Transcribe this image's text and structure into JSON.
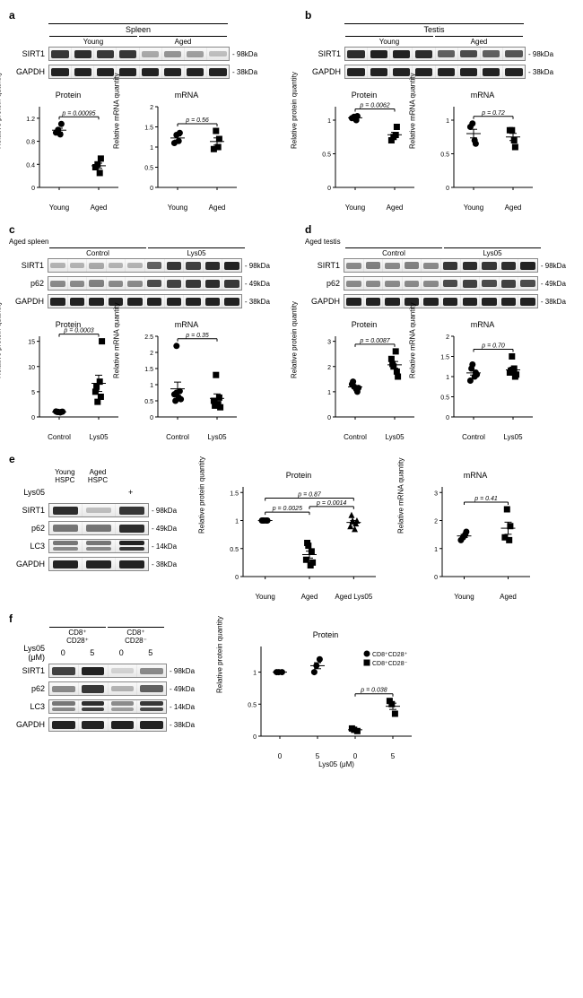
{
  "panels": {
    "a": {
      "label": "a",
      "tissue": "Spleen",
      "groups": [
        "Young",
        "Aged"
      ],
      "lanes": 4,
      "blots": [
        {
          "name": "SIRT1",
          "mw": "- 98kDa",
          "intensities": [
            0.9,
            0.95,
            0.9,
            0.9,
            0.35,
            0.45,
            0.4,
            0.25
          ]
        },
        {
          "name": "GAPDH",
          "mw": "- 38kDa",
          "intensities": [
            1,
            1,
            1,
            1,
            1,
            1,
            1,
            1
          ]
        }
      ],
      "protein": {
        "title": "Protein",
        "ylabel": "Relative protein quantity",
        "ylim": [
          0,
          1.4
        ],
        "yticks": [
          0,
          0.4,
          0.8,
          1.2
        ],
        "cats": [
          "Young",
          "Aged"
        ],
        "p": "p = 0.00095",
        "series": [
          {
            "shape": "circle",
            "x": 0,
            "vals": [
              1.0,
              1.1,
              0.95,
              0.92
            ]
          },
          {
            "shape": "square",
            "x": 1,
            "vals": [
              0.4,
              0.5,
              0.35,
              0.25
            ]
          }
        ]
      },
      "mrna": {
        "title": "mRNA",
        "ylabel": "Relative mRNA quantity",
        "ylim": [
          0,
          2.0
        ],
        "yticks": [
          0,
          0.5,
          1.0,
          1.5,
          2.0
        ],
        "cats": [
          "Young",
          "Aged"
        ],
        "p": "p = 0.56",
        "series": [
          {
            "shape": "circle",
            "x": 0,
            "vals": [
              1.3,
              1.35,
              1.1,
              1.15
            ]
          },
          {
            "shape": "square",
            "x": 1,
            "vals": [
              1.4,
              1.2,
              0.95,
              1.0
            ]
          }
        ]
      }
    },
    "b": {
      "label": "b",
      "tissue": "Testis",
      "groups": [
        "Young",
        "Aged"
      ],
      "lanes": 4,
      "blots": [
        {
          "name": "SIRT1",
          "mw": "- 98kDa",
          "intensities": [
            0.95,
            1.0,
            1.0,
            0.95,
            0.7,
            0.8,
            0.7,
            0.75
          ]
        },
        {
          "name": "GAPDH",
          "mw": "- 38kDa",
          "intensities": [
            1,
            1,
            1,
            1,
            1,
            1,
            1,
            1
          ]
        }
      ],
      "protein": {
        "title": "Protein",
        "ylabel": "Relative protein quantity",
        "ylim": [
          0,
          1.2
        ],
        "yticks": [
          0,
          0.5,
          1.0
        ],
        "cats": [
          "Young",
          "Aged"
        ],
        "p": "p = 0.0062",
        "series": [
          {
            "shape": "circle",
            "x": 0,
            "vals": [
              1.05,
              1.06,
              1.03,
              1.0
            ]
          },
          {
            "shape": "square",
            "x": 1,
            "vals": [
              0.75,
              0.9,
              0.7,
              0.78
            ]
          }
        ]
      },
      "mrna": {
        "title": "mRNA",
        "ylabel": "Relative mRNA quantity",
        "ylim": [
          0,
          1.2
        ],
        "yticks": [
          0,
          0.5,
          1.0
        ],
        "cats": [
          "Young",
          "Aged"
        ],
        "p": "p = 0.72",
        "series": [
          {
            "shape": "circle",
            "x": 0,
            "vals": [
              0.95,
              0.65,
              0.9,
              0.7
            ]
          },
          {
            "shape": "square",
            "x": 1,
            "vals": [
              0.85,
              0.6,
              0.85,
              0.7
            ]
          }
        ]
      }
    },
    "c": {
      "label": "c",
      "tissue_label": "Aged spleen",
      "groups": [
        "Control",
        "Lys05"
      ],
      "lanes": 5,
      "blots": [
        {
          "name": "SIRT1",
          "mw": "- 98kDa",
          "intensities": [
            0.3,
            0.3,
            0.35,
            0.3,
            0.3,
            0.7,
            0.9,
            0.85,
            0.95,
            1.0
          ]
        },
        {
          "name": "p62",
          "mw": "- 49kDa",
          "intensities": [
            0.5,
            0.5,
            0.55,
            0.5,
            0.5,
            0.8,
            0.85,
            0.9,
            0.95,
            0.9
          ]
        },
        {
          "name": "GAPDH",
          "mw": "- 38kDa",
          "intensities": [
            1,
            1,
            1,
            1,
            1,
            1,
            1,
            1,
            1,
            1
          ]
        }
      ],
      "protein": {
        "title": "Protein",
        "ylabel": "Relative protein quantity",
        "ylim": [
          0,
          16
        ],
        "yticks": [
          0,
          5,
          10,
          15
        ],
        "cats": [
          "Control",
          "Lys05"
        ],
        "p": "p = 0.0003",
        "series": [
          {
            "shape": "circle",
            "x": 0,
            "vals": [
              1,
              1,
              1.1,
              0.9,
              1,
              1.05,
              1
            ]
          },
          {
            "shape": "square",
            "x": 1,
            "vals": [
              3,
              4,
              5,
              7,
              6,
              15
            ]
          }
        ]
      },
      "mrna": {
        "title": "mRNA",
        "ylabel": "Relative mRNA quantity",
        "ylim": [
          0,
          2.5
        ],
        "yticks": [
          0,
          0.5,
          1.0,
          1.5,
          2.0,
          2.5
        ],
        "cats": [
          "Control",
          "Lys05"
        ],
        "p": "p = 0.35",
        "series": [
          {
            "shape": "circle",
            "x": 0,
            "vals": [
              2.2,
              0.8,
              0.7,
              0.6,
              0.5,
              0.55,
              0.75
            ]
          },
          {
            "shape": "square",
            "x": 1,
            "vals": [
              1.3,
              0.6,
              0.5,
              0.4,
              0.35,
              0.3
            ]
          }
        ]
      }
    },
    "d": {
      "label": "d",
      "tissue_label": "Aged testis",
      "groups": [
        "Control",
        "Lys05"
      ],
      "lanes": 5,
      "blots": [
        {
          "name": "SIRT1",
          "mw": "- 98kDa",
          "intensities": [
            0.5,
            0.55,
            0.5,
            0.55,
            0.5,
            0.9,
            0.95,
            0.9,
            0.95,
            1.0
          ]
        },
        {
          "name": "p62",
          "mw": "- 49kDa",
          "intensities": [
            0.5,
            0.5,
            0.5,
            0.5,
            0.5,
            0.8,
            0.85,
            0.8,
            0.85,
            0.8
          ]
        },
        {
          "name": "GAPDH",
          "mw": "- 38kDa",
          "intensities": [
            1,
            1,
            1,
            1,
            1,
            1,
            1,
            1,
            1,
            1
          ]
        }
      ],
      "protein": {
        "title": "Protein",
        "ylabel": "Relative protein quantity",
        "ylim": [
          0,
          3.2
        ],
        "yticks": [
          0,
          1,
          2,
          3
        ],
        "cats": [
          "Control",
          "Lys05"
        ],
        "p": "p = 0.0087",
        "series": [
          {
            "shape": "circle",
            "x": 0,
            "vals": [
              1.2,
              1.0,
              1.3,
              1.1,
              1.4,
              1.15
            ]
          },
          {
            "shape": "square",
            "x": 1,
            "vals": [
              2.0,
              1.8,
              2.3,
              2.6,
              2.1,
              1.6
            ]
          }
        ]
      },
      "mrna": {
        "title": "mRNA",
        "ylabel": "Relative mRNA quantity",
        "ylim": [
          0,
          2.0
        ],
        "yticks": [
          0,
          0.5,
          1.0,
          1.5,
          2.0
        ],
        "cats": [
          "Control",
          "Lys05"
        ],
        "p": "p = 0.70",
        "series": [
          {
            "shape": "circle",
            "x": 0,
            "vals": [
              1.3,
              1.1,
              0.9,
              1.0,
              1.2,
              1.05
            ]
          },
          {
            "shape": "square",
            "x": 1,
            "vals": [
              1.5,
              1.0,
              1.1,
              1.2,
              1.15,
              1.05
            ]
          }
        ]
      }
    },
    "e": {
      "label": "e",
      "col_labels": [
        "Young\nHSPC",
        "Aged\nHSPC",
        ""
      ],
      "lys_row": [
        "",
        "",
        "+"
      ],
      "blots": [
        {
          "name": "SIRT1",
          "mw": "- 98kDa",
          "intensities": [
            0.95,
            0.25,
            0.9
          ]
        },
        {
          "name": "p62",
          "mw": "- 49kDa",
          "intensities": [
            0.6,
            0.6,
            0.95
          ]
        },
        {
          "name": "LC3",
          "mw": "- 14kDa",
          "intensities": [
            0.5,
            0.5,
            0.9
          ],
          "double": true
        },
        {
          "name": "GAPDH",
          "mw": "- 38kDa",
          "intensities": [
            1,
            1,
            1
          ]
        }
      ],
      "protein": {
        "title": "Protein",
        "ylabel": "Relative protein quantity",
        "ylim": [
          0,
          1.6
        ],
        "yticks": [
          0,
          0.5,
          1.0,
          1.5
        ],
        "cats": [
          "Young",
          "Aged",
          "Aged Lys05"
        ],
        "plines": [
          {
            "a": 0,
            "b": 1,
            "y": 1.15,
            "text": "p = 0.0025"
          },
          {
            "a": 1,
            "b": 2,
            "y": 1.25,
            "text": "p = 0.0014"
          },
          {
            "a": 0,
            "b": 2,
            "y": 1.4,
            "text": "p = 0.87"
          }
        ],
        "series": [
          {
            "shape": "circle",
            "x": 0,
            "vals": [
              1.0,
              1.0,
              1.0,
              1.0,
              1.0
            ]
          },
          {
            "shape": "square",
            "x": 1,
            "vals": [
              0.55,
              0.45,
              0.3,
              0.2,
              0.6,
              0.25
            ]
          },
          {
            "shape": "triangle",
            "x": 2,
            "vals": [
              1.0,
              0.95,
              0.9,
              0.85,
              1.1,
              1.0
            ]
          }
        ]
      },
      "mrna": {
        "title": "mRNA",
        "ylabel": "Relative mRNA quantity",
        "ylim": [
          0,
          3.2
        ],
        "yticks": [
          0,
          1,
          2,
          3
        ],
        "cats": [
          "Young",
          "Aged"
        ],
        "p": "p = 0.41",
        "series": [
          {
            "shape": "circle",
            "x": 0,
            "vals": [
              1.4,
              1.6,
              1.3,
              1.5
            ]
          },
          {
            "shape": "square",
            "x": 1,
            "vals": [
              2.4,
              1.8,
              1.4,
              1.3
            ]
          }
        ]
      }
    },
    "f": {
      "label": "f",
      "col_groups": [
        "CD8⁺\nCD28⁺",
        "CD8⁺\nCD28⁻"
      ],
      "lys_vals": [
        "0",
        "5",
        "0",
        "5"
      ],
      "lys_label": "Lys05 (μM)",
      "blots": [
        {
          "name": "SIRT1",
          "mw": "- 98kDa",
          "intensities": [
            0.85,
            1.0,
            0.15,
            0.5
          ]
        },
        {
          "name": "p62",
          "mw": "- 49kDa",
          "intensities": [
            0.5,
            0.9,
            0.3,
            0.7
          ]
        },
        {
          "name": "LC3",
          "mw": "- 14kDa",
          "intensities": [
            0.5,
            0.85,
            0.4,
            0.8
          ],
          "double": true
        },
        {
          "name": "GAPDH",
          "mw": "- 38kDa",
          "intensities": [
            1,
            1,
            1,
            1
          ]
        }
      ],
      "protein": {
        "title": "Protein",
        "ylabel": "Relative protein quantity",
        "ylim": [
          0,
          1.4
        ],
        "yticks": [
          0,
          0.5,
          1.0
        ],
        "xlabel": "Lys05 (μM)",
        "cats": [
          "0",
          "5",
          "0",
          "5"
        ],
        "legend": [
          {
            "shape": "circle",
            "text": "CD8⁺CD28⁺"
          },
          {
            "shape": "square",
            "text": "CD8⁺CD28⁻"
          }
        ],
        "p": "p = 0.038",
        "p_x": [
          2,
          3
        ],
        "series": [
          {
            "shape": "circle",
            "x": 0,
            "vals": [
              1.0,
              1.0,
              1.0
            ]
          },
          {
            "shape": "circle",
            "x": 1,
            "vals": [
              1.1,
              1.2,
              1.0
            ]
          },
          {
            "shape": "square",
            "x": 2,
            "vals": [
              0.1,
              0.08,
              0.12
            ]
          },
          {
            "shape": "square",
            "x": 3,
            "vals": [
              0.5,
              0.35,
              0.55
            ]
          }
        ]
      }
    }
  },
  "style": {
    "marker_size": 3.5,
    "axis_color": "#000000",
    "text_color": "#000000"
  }
}
